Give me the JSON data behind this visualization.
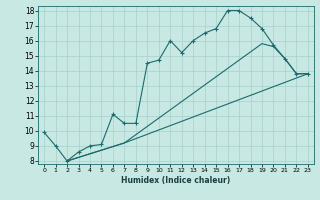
{
  "xlabel": "Humidex (Indice chaleur)",
  "ylabel": "",
  "xlim": [
    -0.5,
    23.5
  ],
  "ylim": [
    7.8,
    18.3
  ],
  "xticks": [
    0,
    1,
    2,
    3,
    4,
    5,
    6,
    7,
    8,
    9,
    10,
    11,
    12,
    13,
    14,
    15,
    16,
    17,
    18,
    19,
    20,
    21,
    22,
    23
  ],
  "yticks": [
    8,
    9,
    10,
    11,
    12,
    13,
    14,
    15,
    16,
    17,
    18
  ],
  "bg_color": "#c8e8e4",
  "grid_color": "#a8d0cc",
  "line_color": "#1a6b6b",
  "line1_x": [
    0,
    1,
    2,
    3,
    4,
    5,
    6,
    7,
    8,
    9,
    10,
    11,
    12,
    13,
    14,
    15,
    16,
    17,
    18,
    19,
    20,
    21,
    22,
    23
  ],
  "line1_y": [
    9.9,
    9.0,
    8.0,
    8.6,
    9.0,
    9.1,
    11.1,
    10.5,
    10.5,
    14.5,
    14.7,
    16.0,
    15.2,
    16.0,
    16.5,
    16.8,
    18.0,
    18.0,
    17.5,
    16.8,
    15.7,
    14.8,
    13.8,
    13.8
  ],
  "line2_x": [
    2,
    7,
    23
  ],
  "line2_y": [
    8.0,
    9.2,
    13.8
  ],
  "line3_x": [
    2,
    7,
    19,
    20,
    21,
    22,
    23
  ],
  "line3_y": [
    8.0,
    9.2,
    15.8,
    15.6,
    14.8,
    13.8,
    13.8
  ]
}
